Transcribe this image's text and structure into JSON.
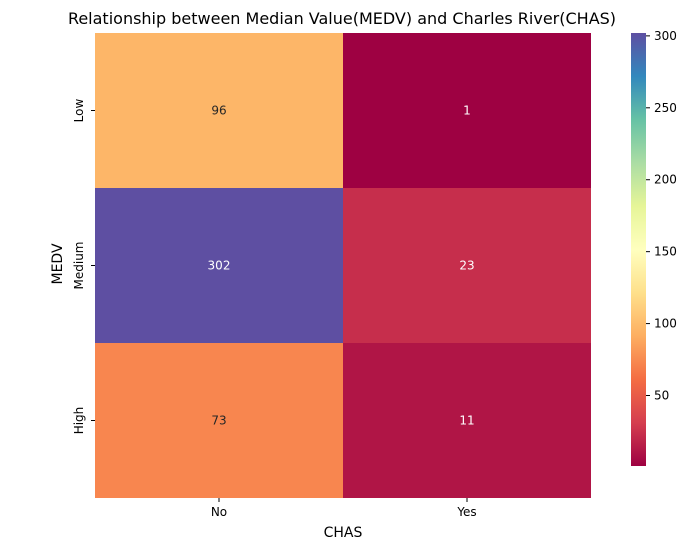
{
  "chart_data": {
    "type": "heatmap",
    "title": "Relationship between Median Value(MEDV) and Charles River(CHAS)",
    "xlabel": "CHAS",
    "ylabel": "MEDV",
    "x_categories": [
      "No",
      "Yes"
    ],
    "y_categories": [
      "Low",
      "Medium",
      "High"
    ],
    "values": [
      [
        96,
        1
      ],
      [
        302,
        23
      ],
      [
        73,
        11
      ]
    ],
    "colormap": "Spectral",
    "colorbar": {
      "range": [
        1,
        302
      ],
      "ticks": [
        50,
        100,
        150,
        200,
        250,
        300
      ]
    },
    "grid": false
  }
}
